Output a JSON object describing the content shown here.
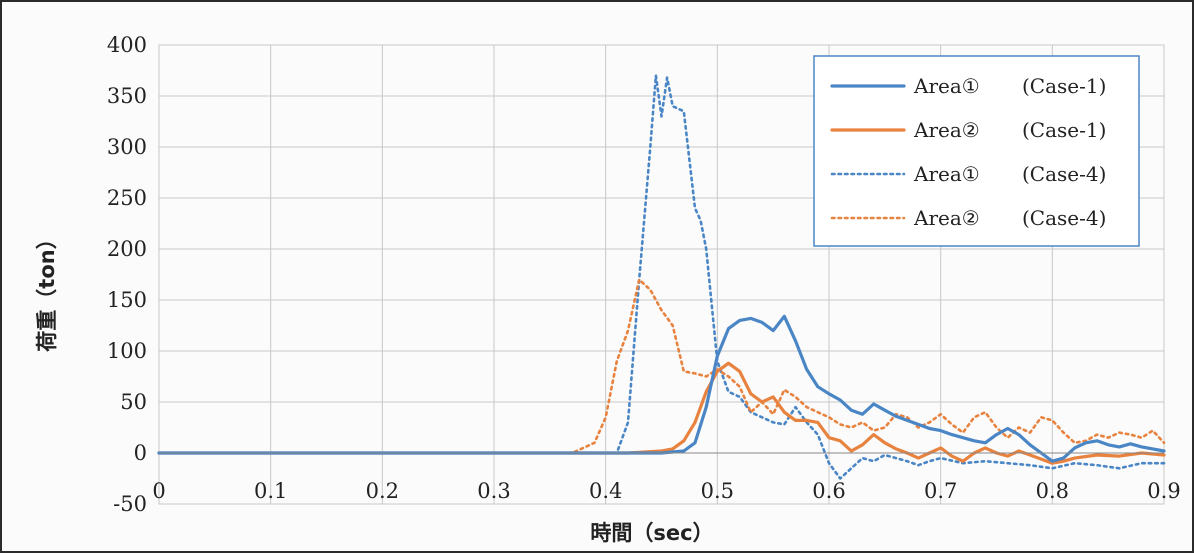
{
  "chart_data": {
    "type": "line",
    "title": "",
    "xlabel": "時間（sec）",
    "ylabel": "荷重（ton）",
    "xlim": [
      0,
      0.9
    ],
    "ylim": [
      -50,
      400
    ],
    "grid": true,
    "legend_position": "top-right",
    "x_ticks": [
      "0",
      "0.1",
      "0.2",
      "0.3",
      "0.4",
      "0.5",
      "0.6",
      "0.7",
      "0.8",
      "0.9"
    ],
    "y_ticks": [
      "-50",
      "0",
      "50",
      "100",
      "150",
      "200",
      "250",
      "300",
      "350",
      "400"
    ],
    "colors": {
      "blue": "#4a86c5",
      "orange": "#e8823f"
    },
    "series": [
      {
        "name": "Area① (Case-1)",
        "label_area": "Area①",
        "label_case": "(Case-1)",
        "color": "#4a86c5",
        "style": "solid",
        "x": [
          0,
          0.45,
          0.47,
          0.48,
          0.49,
          0.5,
          0.51,
          0.52,
          0.53,
          0.54,
          0.55,
          0.56,
          0.57,
          0.58,
          0.59,
          0.6,
          0.61,
          0.62,
          0.63,
          0.64,
          0.65,
          0.66,
          0.67,
          0.68,
          0.69,
          0.7,
          0.71,
          0.72,
          0.73,
          0.74,
          0.75,
          0.76,
          0.77,
          0.78,
          0.79,
          0.8,
          0.81,
          0.82,
          0.83,
          0.84,
          0.85,
          0.86,
          0.87,
          0.88,
          0.89,
          0.9
        ],
        "y": [
          0,
          0,
          2,
          10,
          45,
          95,
          122,
          130,
          132,
          128,
          120,
          134,
          110,
          82,
          65,
          58,
          52,
          42,
          38,
          48,
          42,
          36,
          32,
          28,
          24,
          22,
          18,
          15,
          12,
          10,
          18,
          24,
          18,
          8,
          0,
          -8,
          -5,
          5,
          10,
          12,
          8,
          6,
          9,
          6,
          4,
          2
        ]
      },
      {
        "name": "Area② (Case-1)",
        "label_area": "Area②",
        "label_case": "(Case-1)",
        "color": "#e8823f",
        "style": "solid",
        "x": [
          0,
          0.42,
          0.45,
          0.46,
          0.47,
          0.48,
          0.49,
          0.5,
          0.51,
          0.52,
          0.53,
          0.54,
          0.55,
          0.56,
          0.57,
          0.58,
          0.59,
          0.6,
          0.61,
          0.62,
          0.63,
          0.64,
          0.65,
          0.66,
          0.67,
          0.68,
          0.69,
          0.7,
          0.71,
          0.72,
          0.73,
          0.74,
          0.75,
          0.76,
          0.77,
          0.78,
          0.79,
          0.8,
          0.81,
          0.82,
          0.84,
          0.86,
          0.88,
          0.9
        ],
        "y": [
          0,
          0,
          2,
          4,
          12,
          30,
          60,
          80,
          88,
          80,
          58,
          50,
          55,
          40,
          32,
          32,
          30,
          15,
          12,
          2,
          8,
          18,
          10,
          4,
          0,
          -5,
          0,
          5,
          -3,
          -8,
          0,
          5,
          0,
          -3,
          2,
          -2,
          -6,
          -10,
          -8,
          -5,
          -2,
          -3,
          0,
          -2
        ]
      },
      {
        "name": "Area① (Case-4)",
        "label_area": "Area①",
        "label_case": "(Case-4)",
        "color": "#4a86c5",
        "style": "dotted",
        "x": [
          0,
          0.41,
          0.42,
          0.43,
          0.44,
          0.445,
          0.45,
          0.455,
          0.46,
          0.47,
          0.48,
          0.485,
          0.49,
          0.5,
          0.51,
          0.52,
          0.53,
          0.54,
          0.55,
          0.56,
          0.57,
          0.58,
          0.59,
          0.6,
          0.61,
          0.62,
          0.63,
          0.64,
          0.65,
          0.66,
          0.67,
          0.68,
          0.69,
          0.7,
          0.72,
          0.74,
          0.76,
          0.78,
          0.8,
          0.82,
          0.84,
          0.86,
          0.88,
          0.9
        ],
        "y": [
          0,
          0,
          30,
          170,
          300,
          370,
          330,
          368,
          340,
          335,
          240,
          228,
          200,
          90,
          60,
          55,
          40,
          35,
          30,
          28,
          45,
          30,
          18,
          -10,
          -25,
          -15,
          -5,
          -8,
          -2,
          -5,
          -8,
          -12,
          -8,
          -5,
          -10,
          -8,
          -10,
          -12,
          -15,
          -10,
          -12,
          -15,
          -10,
          -10
        ]
      },
      {
        "name": "Area② (Case-4)",
        "label_area": "Area②",
        "label_case": "(Case-4)",
        "color": "#e8823f",
        "style": "dotted",
        "x": [
          0,
          0.37,
          0.39,
          0.4,
          0.41,
          0.42,
          0.43,
          0.44,
          0.45,
          0.46,
          0.47,
          0.48,
          0.49,
          0.5,
          0.51,
          0.52,
          0.53,
          0.54,
          0.55,
          0.56,
          0.57,
          0.58,
          0.59,
          0.6,
          0.61,
          0.62,
          0.63,
          0.64,
          0.65,
          0.66,
          0.67,
          0.68,
          0.69,
          0.7,
          0.71,
          0.72,
          0.73,
          0.74,
          0.75,
          0.76,
          0.77,
          0.78,
          0.79,
          0.8,
          0.81,
          0.82,
          0.83,
          0.84,
          0.85,
          0.86,
          0.87,
          0.88,
          0.89,
          0.9
        ],
        "y": [
          0,
          0,
          10,
          35,
          90,
          120,
          170,
          160,
          140,
          125,
          80,
          78,
          75,
          82,
          75,
          65,
          40,
          50,
          38,
          62,
          55,
          45,
          40,
          35,
          28,
          25,
          30,
          22,
          25,
          38,
          35,
          25,
          30,
          38,
          28,
          20,
          35,
          40,
          25,
          15,
          25,
          20,
          35,
          32,
          20,
          10,
          12,
          18,
          15,
          20,
          18,
          15,
          22,
          10
        ]
      }
    ]
  }
}
